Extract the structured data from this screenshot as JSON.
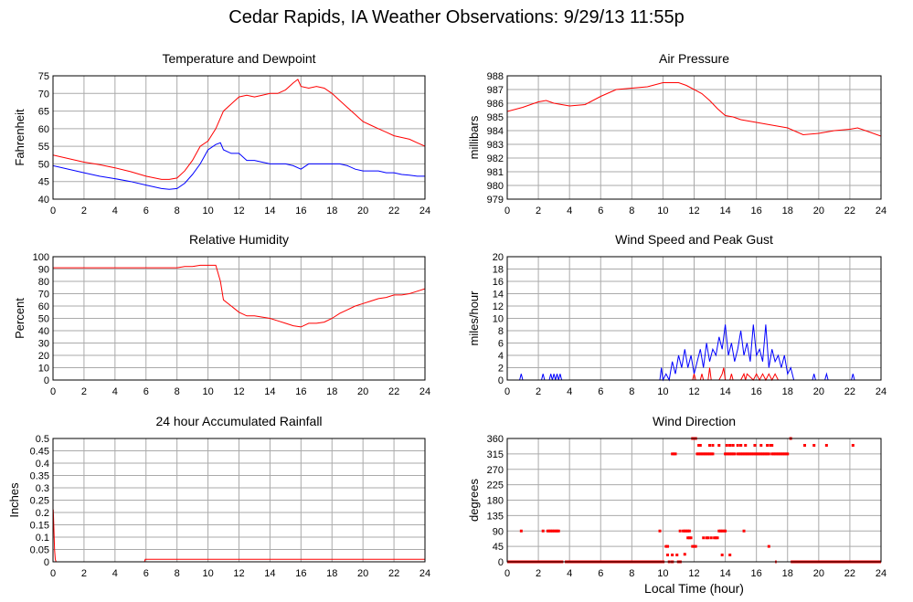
{
  "page": {
    "title": "Cedar Rapids, IA Weather Observations: 9/29/13 11:55p"
  },
  "colors": {
    "red": "#ff0000",
    "blue": "#0000ff",
    "grid": "#aaaaaa",
    "frame": "#000000"
  },
  "chart_data": [
    {
      "id": "temp",
      "type": "line",
      "title": "Temperature and Dewpoint",
      "xlabel": "",
      "ylabel": "Fahrenheit",
      "xlim": [
        0,
        24
      ],
      "ylim": [
        40,
        75
      ],
      "xticks": [
        0,
        2,
        4,
        6,
        8,
        10,
        12,
        14,
        16,
        18,
        20,
        22,
        24
      ],
      "yticks": [
        40,
        45,
        50,
        55,
        60,
        65,
        70,
        75
      ],
      "grid": true,
      "series": [
        {
          "color": "#ff0000",
          "x": [
            0,
            1,
            2,
            3,
            4,
            5,
            6,
            7,
            7.5,
            8,
            8.5,
            9,
            9.5,
            10,
            10.5,
            11,
            11.5,
            12,
            12.5,
            13,
            13.5,
            14,
            14.5,
            15,
            15.5,
            15.8,
            16,
            16.5,
            17,
            17.5,
            18,
            18.5,
            19,
            19.5,
            20,
            20.5,
            21,
            21.5,
            22,
            22.5,
            23,
            23.5,
            24
          ],
          "y": [
            52.5,
            51.5,
            50.5,
            49.8,
            48.9,
            47.8,
            46.5,
            45.6,
            45.6,
            46,
            48,
            51,
            55,
            56.5,
            60,
            65,
            67,
            69,
            69.5,
            69,
            69.5,
            70,
            70,
            71,
            73,
            74,
            72,
            71.5,
            72,
            71.5,
            70,
            68,
            66,
            64,
            62,
            61,
            60,
            59,
            58,
            57.5,
            57,
            56,
            55
          ]
        },
        {
          "color": "#0000ff",
          "x": [
            0,
            1,
            2,
            3,
            4,
            5,
            6,
            7,
            7.5,
            8,
            8.5,
            9,
            9.5,
            10,
            10.5,
            10.8,
            11,
            11.5,
            12,
            12.5,
            13,
            13.5,
            14,
            14.5,
            15,
            15.5,
            16,
            16.5,
            17,
            17.5,
            18,
            18.5,
            19,
            19.5,
            20,
            20.5,
            21,
            21.5,
            22,
            22.5,
            23,
            23.5,
            24
          ],
          "y": [
            49.5,
            48.5,
            47.5,
            46.5,
            45.8,
            45,
            44,
            43,
            42.8,
            43,
            44.5,
            47,
            50,
            54,
            55.5,
            56,
            54,
            53,
            53,
            51,
            51,
            50.5,
            50,
            50,
            50,
            49.5,
            48.5,
            50,
            50,
            50,
            50,
            50,
            49.5,
            48.5,
            48,
            48,
            48,
            47.5,
            47.5,
            47,
            46.8,
            46.5,
            46.5
          ]
        }
      ]
    },
    {
      "id": "pressure",
      "type": "line",
      "title": "Air Pressure",
      "xlabel": "",
      "ylabel": "millibars",
      "xlim": [
        0,
        24
      ],
      "ylim": [
        979,
        988
      ],
      "xticks": [
        0,
        2,
        4,
        6,
        8,
        10,
        12,
        14,
        16,
        18,
        20,
        22,
        24
      ],
      "yticks": [
        979,
        980,
        981,
        982,
        983,
        984,
        985,
        986,
        987,
        988
      ],
      "grid": true,
      "series": [
        {
          "color": "#ff0000",
          "x": [
            0,
            1,
            2,
            2.5,
            3,
            4,
            5,
            6,
            7,
            8,
            9,
            10,
            11,
            11.5,
            12,
            12.5,
            13,
            13.5,
            14,
            14.5,
            15,
            16,
            17,
            18,
            19,
            20,
            21,
            22,
            22.5,
            23,
            24
          ],
          "y": [
            985.4,
            985.7,
            986.1,
            986.2,
            986,
            985.8,
            985.9,
            986.5,
            987,
            987.1,
            987.2,
            987.5,
            987.5,
            987.3,
            987,
            986.7,
            986.2,
            985.6,
            985.1,
            985,
            984.8,
            984.6,
            984.4,
            984.2,
            983.7,
            983.8,
            984,
            984.1,
            984.2,
            984,
            983.6
          ]
        }
      ]
    },
    {
      "id": "humidity",
      "type": "line",
      "title": "Relative Humidity",
      "xlabel": "",
      "ylabel": "Percent",
      "xlim": [
        0,
        24
      ],
      "ylim": [
        0,
        100
      ],
      "xticks": [
        0,
        2,
        4,
        6,
        8,
        10,
        12,
        14,
        16,
        18,
        20,
        22,
        24
      ],
      "yticks": [
        0,
        10,
        20,
        30,
        40,
        50,
        60,
        70,
        80,
        90,
        100
      ],
      "grid": true,
      "series": [
        {
          "color": "#ff0000",
          "x": [
            0,
            1,
            2,
            3,
            4,
            5,
            6,
            7,
            8,
            8.5,
            9,
            9.5,
            10,
            10.5,
            10.8,
            11,
            11.5,
            12,
            12.5,
            13,
            13.5,
            14,
            14.5,
            15,
            15.5,
            16,
            16.5,
            17,
            17.5,
            18,
            18.5,
            19,
            19.5,
            20,
            20.5,
            21,
            21.5,
            22,
            22.5,
            23,
            23.5,
            24
          ],
          "y": [
            91,
            91,
            91,
            91,
            91,
            91,
            91,
            91,
            91,
            92,
            92,
            93,
            93,
            93,
            80,
            65,
            60,
            55,
            52,
            52,
            51,
            50,
            48,
            46,
            44,
            43,
            46,
            46,
            47,
            50,
            54,
            57,
            60,
            62,
            64,
            66,
            67,
            69,
            69,
            70,
            72,
            74
          ]
        }
      ]
    },
    {
      "id": "wind",
      "type": "line",
      "title": "Wind Speed and Peak Gust",
      "xlabel": "",
      "ylabel": "miles/hour",
      "xlim": [
        0,
        24
      ],
      "ylim": [
        0,
        20
      ],
      "xticks": [
        0,
        2,
        4,
        6,
        8,
        10,
        12,
        14,
        16,
        18,
        20,
        22,
        24
      ],
      "yticks": [
        0,
        2,
        4,
        6,
        8,
        10,
        12,
        14,
        16,
        18,
        20
      ],
      "grid": true,
      "series": [
        {
          "color": "#0000ff",
          "x": [
            0,
            0.8,
            0.9,
            1.0,
            2.2,
            2.3,
            2.4,
            2.7,
            2.8,
            2.9,
            3.0,
            3.1,
            3.2,
            3.3,
            3.4,
            3.5,
            9.8,
            9.9,
            10.0,
            10.2,
            10.4,
            10.6,
            10.8,
            11.0,
            11.2,
            11.4,
            11.6,
            11.8,
            12.0,
            12.2,
            12.4,
            12.6,
            12.8,
            13.0,
            13.2,
            13.4,
            13.6,
            13.8,
            14.0,
            14.2,
            14.4,
            14.6,
            14.8,
            15.0,
            15.2,
            15.4,
            15.6,
            15.8,
            16.0,
            16.2,
            16.4,
            16.6,
            16.8,
            17.0,
            17.2,
            17.4,
            17.6,
            17.8,
            18.0,
            18.2,
            18.4,
            19.6,
            19.7,
            19.8,
            20.4,
            20.5,
            20.6,
            22.1,
            22.2,
            22.3,
            24
          ],
          "y": [
            0,
            0,
            1,
            0,
            0,
            1,
            0,
            0,
            1,
            0,
            1,
            0,
            1,
            0,
            1,
            0,
            0,
            2,
            0,
            1,
            0,
            3,
            1,
            4,
            2,
            5,
            2,
            4,
            1,
            3,
            5,
            2,
            6,
            3,
            5,
            4,
            7,
            5,
            9,
            4,
            6,
            3,
            5,
            8,
            4,
            6,
            3,
            9,
            4,
            5,
            3,
            9,
            2,
            5,
            3,
            4,
            2,
            4,
            1,
            2,
            0,
            0,
            1,
            0,
            0,
            1,
            0,
            0,
            1,
            0,
            0
          ]
        },
        {
          "color": "#ff0000",
          "x": [
            0,
            11.9,
            12.0,
            12.1,
            12.4,
            12.5,
            12.6,
            12.9,
            13.0,
            13.1,
            13.6,
            13.8,
            13.9,
            14.0,
            14.3,
            14.4,
            14.5,
            15.0,
            15.2,
            15.3,
            15.4,
            15.8,
            16.0,
            16.2,
            16.4,
            16.6,
            16.8,
            17.0,
            17.2,
            17.4,
            24
          ],
          "y": [
            0,
            0,
            1,
            0,
            0,
            1,
            0,
            0,
            2,
            0,
            0,
            1,
            2,
            0,
            0,
            1,
            0,
            0,
            1,
            0,
            1,
            0,
            1,
            0,
            1,
            0,
            1,
            0,
            1,
            0,
            0
          ]
        }
      ]
    },
    {
      "id": "rain",
      "type": "line",
      "title": "24 hour Accumulated Rainfall",
      "xlabel": "",
      "ylabel": "Inches",
      "xlim": [
        0,
        24
      ],
      "ylim": [
        0,
        0.5
      ],
      "xticks": [
        0,
        2,
        4,
        6,
        8,
        10,
        12,
        14,
        16,
        18,
        20,
        22,
        24
      ],
      "yticks": [
        0,
        0.05,
        0.1,
        0.15,
        0.2,
        0.25,
        0.3,
        0.35,
        0.4,
        0.45,
        0.5
      ],
      "grid": true,
      "series": [
        {
          "color": "#ff0000",
          "x": [
            0,
            0.02,
            0.1,
            0.15,
            0.2,
            5.9,
            5.95,
            6.0,
            24
          ],
          "y": [
            0.21,
            0.21,
            0.05,
            0.01,
            0.0,
            0.0,
            0.01,
            0.01,
            0.01
          ]
        }
      ]
    },
    {
      "id": "direction",
      "type": "scatter",
      "title": "Wind Direction",
      "xlabel": "Local Time (hour)",
      "ylabel": "degrees",
      "xlim": [
        0,
        24
      ],
      "ylim": [
        0,
        360
      ],
      "xticks": [
        0,
        2,
        4,
        6,
        8,
        10,
        12,
        14,
        16,
        18,
        20,
        22,
        24
      ],
      "yticks": [
        0,
        45,
        90,
        135,
        180,
        225,
        270,
        315,
        360
      ],
      "grid": true,
      "series": [
        {
          "color": "#ff0000",
          "zero_runs": [
            [
              0,
              3.6
            ],
            [
              3.7,
              10.1
            ],
            [
              10.5,
              10.7
            ],
            [
              10.9,
              11.2
            ],
            [
              17.2,
              17.3
            ],
            [
              18.2,
              24
            ]
          ],
          "x": [
            0.9,
            2.3,
            2.6,
            2.7,
            2.8,
            2.9,
            3.0,
            3.1,
            3.2,
            3.3,
            9.8,
            10.2,
            10.3,
            10.4,
            10.6,
            10.7,
            10.8,
            11.1,
            11.3,
            11.4,
            11.5,
            11.6,
            11.7,
            11.6,
            11.8,
            11.9,
            12.0,
            12.1,
            12.2,
            12.3,
            12.4,
            12.5,
            12.6,
            12.7,
            12.8,
            12.9,
            13.0,
            13.1,
            13.2,
            12.6,
            12.8,
            12.9,
            13.1,
            13.3,
            13.4,
            13.5,
            13.6,
            13.7,
            13.8,
            13.9,
            14.0,
            14.1,
            14.2,
            14.3,
            14.4,
            14.5,
            14.6,
            14.8,
            14.9,
            15.0,
            15.1,
            15.2,
            15.3,
            15.4,
            15.5,
            15.6,
            15.7,
            15.8,
            15.9,
            16.0,
            16.1,
            16.2,
            16.3,
            16.4,
            16.5,
            16.6,
            16.7,
            16.8,
            17.0,
            17.1,
            17.2,
            17.3,
            17.4,
            17.5,
            17.6,
            17.7,
            17.8,
            17.9,
            18.0,
            13.6,
            14.1,
            14.3,
            14.5,
            15.0,
            15.3,
            15.9,
            16.3,
            16.7,
            11.9,
            12.0,
            12.1,
            12.3,
            12.4,
            13.0,
            13.2,
            14.3,
            14.5,
            14.8,
            15.0,
            15.9,
            16.9,
            17.0,
            18.2,
            19.1,
            19.7,
            20.5,
            22.2,
            11.7,
            14.0,
            15.2,
            16.8,
            10.3,
            10.9,
            11.4,
            10.6,
            13.8,
            14.3
          ],
          "y": [
            90,
            90,
            90,
            90,
            90,
            90,
            90,
            90,
            90,
            90,
            90,
            45,
            45,
            0,
            315,
            315,
            315,
            90,
            90,
            90,
            90,
            90,
            70,
            70,
            70,
            45,
            45,
            45,
            315,
            315,
            315,
            315,
            315,
            315,
            315,
            315,
            315,
            315,
            315,
            70,
            70,
            70,
            70,
            70,
            70,
            70,
            90,
            90,
            90,
            90,
            315,
            315,
            315,
            315,
            315,
            315,
            315,
            315,
            315,
            315,
            315,
            315,
            315,
            315,
            315,
            315,
            315,
            315,
            315,
            315,
            315,
            315,
            315,
            315,
            315,
            315,
            315,
            315,
            315,
            315,
            315,
            315,
            315,
            315,
            315,
            315,
            315,
            315,
            315,
            340,
            340,
            340,
            340,
            340,
            340,
            340,
            340,
            340,
            360,
            360,
            360,
            340,
            340,
            340,
            340,
            340,
            340,
            340,
            340,
            340,
            340,
            340,
            360,
            340,
            340,
            340,
            340,
            90,
            90,
            90,
            45,
            20,
            20,
            22,
            20,
            20,
            20
          ]
        }
      ]
    }
  ]
}
